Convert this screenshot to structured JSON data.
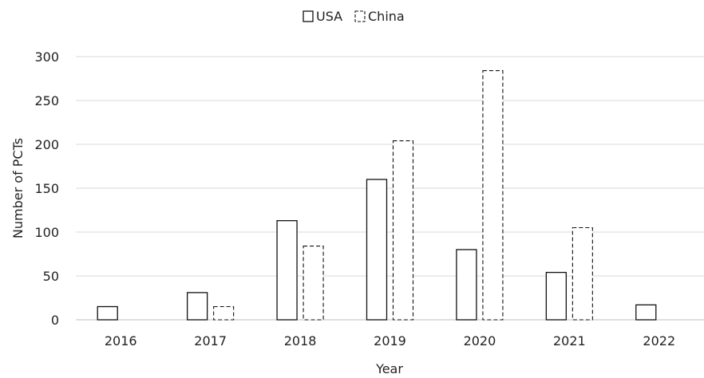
{
  "chart_data": {
    "type": "bar",
    "categories": [
      "2016",
      "2017",
      "2018",
      "2019",
      "2020",
      "2021",
      "2022"
    ],
    "series": [
      {
        "name": "USA",
        "values": [
          15,
          31,
          113,
          160,
          80,
          54,
          17
        ],
        "style": "solid"
      },
      {
        "name": "China",
        "values": [
          0,
          15,
          84,
          204,
          284,
          105,
          0
        ],
        "style": "dashed"
      }
    ],
    "xlabel": "Year",
    "ylabel": "Number of PCTs",
    "ylim": [
      0,
      300
    ],
    "yticks": [
      "0",
      "50",
      "100",
      "150",
      "200",
      "250",
      "300"
    ],
    "grid": true,
    "legend_position": "top-center"
  }
}
